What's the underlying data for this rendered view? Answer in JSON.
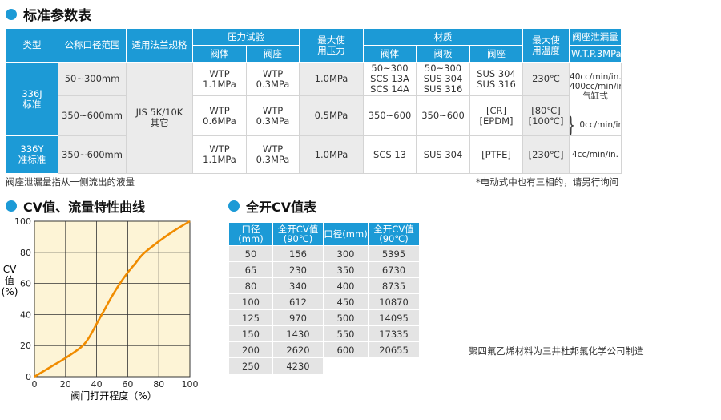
{
  "spec_title": "标准参数表",
  "spec_table": {
    "h": {
      "type": "类型",
      "dn": "公称口径范围",
      "flange": "适用法兰规格",
      "pressure_test": "压力试验",
      "body": "阀体",
      "seat": "阀座",
      "max_pressure": "最大使\n用压力",
      "material": "材质",
      "m_body": "阀体",
      "m_disc": "阀板",
      "m_seat": "阀座",
      "max_temp": "最大使\n用温度",
      "leak": "阀座泄漏量",
      "leak_std": "W.T.P.3MPa"
    },
    "t336j": "336J\n标准",
    "t336y": "336Y\n准标准",
    "flange_val": "JIS 5K/10K\n其它",
    "r1": {
      "dn": "50~300mm",
      "pt_body": "WTP\n1.1MPa",
      "pt_seat": "WTP\n0.3MPa",
      "maxp": "1.0MPa",
      "m_body": "50~300\nSCS 13A\nSCS 14A",
      "m_disc": "50~300\nSUS 304\nSUS 316",
      "m_seat": "SUS 304\nSUS 316",
      "temp": "230℃",
      "leak": "40cc/min/in.\n400cc/min/in.\n气缸式"
    },
    "r2": {
      "dn": "350~600mm",
      "pt_body": "WTP\n0.6MPa",
      "pt_seat": "WTP\n0.3MPa",
      "maxp": "0.5MPa",
      "m_body": "350~600",
      "m_disc": "350~600",
      "m_seat": "[CR]\n[EPDM]",
      "temp": "[80℃]\n[100℃]",
      "leak": "0cc/min/in."
    },
    "r3": {
      "dn": "350~600mm",
      "pt_body": "WTP\n1.1MPa",
      "pt_seat": "WTP\n0.3MPa",
      "maxp": "1.0MPa",
      "m_body": "SCS 13",
      "m_disc": "SUS 304",
      "m_seat": "[PTFE]",
      "temp": "[230℃]",
      "leak": "4cc/min/in."
    }
  },
  "note_left": "阀座泄漏量指从一侧流出的液量",
  "note_right": "*电动式中也有三相的，请另行询问",
  "curve_title": "CV值、流量特性曲线",
  "cv_title": "全开CV值表",
  "cv_table": {
    "h_size": "口径(mm)",
    "h_cv": "全开CV值\n(90℃)",
    "h_size2": "口径(mm)",
    "h_cv2": "全开CV值\n(90℃)",
    "left": [
      [
        "50",
        "156"
      ],
      [
        "65",
        "230"
      ],
      [
        "80",
        "340"
      ],
      [
        "100",
        "612"
      ],
      [
        "125",
        "970"
      ],
      [
        "150",
        "1430"
      ],
      [
        "200",
        "2620"
      ],
      [
        "250",
        "4230"
      ]
    ],
    "right": [
      [
        "300",
        "5395"
      ],
      [
        "350",
        "6730"
      ],
      [
        "400",
        "8735"
      ],
      [
        "450",
        "10870"
      ],
      [
        "500",
        "14095"
      ],
      [
        "550",
        "17335"
      ],
      [
        "600",
        "20655"
      ]
    ]
  },
  "ptfe_note": "聚四氟乙烯材料为三井杜邦氟化学公司制造",
  "colors": {
    "accent": "#1c9ad6",
    "curve": "#f08c00",
    "plot_bg": "#fdf4d6"
  },
  "chart_data": {
    "type": "line",
    "title": "CV值、流量特性曲线",
    "xlabel": "阀门打开程度（%）",
    "ylabel": "CV\n值\n(%)",
    "xlim": [
      0,
      100
    ],
    "ylim": [
      0,
      100
    ],
    "xticks": [
      0,
      20,
      40,
      60,
      80,
      100
    ],
    "yticks": [
      0,
      20,
      40,
      60,
      80,
      100
    ],
    "grid": true,
    "series": [
      {
        "x": [
          0,
          10,
          20,
          30,
          35,
          40,
          45,
          50,
          55,
          60,
          65,
          70,
          80,
          90,
          100
        ],
        "y": [
          0,
          6,
          12,
          19,
          25,
          34,
          43,
          52,
          60,
          67,
          73,
          79,
          87,
          94,
          100
        ]
      }
    ]
  }
}
